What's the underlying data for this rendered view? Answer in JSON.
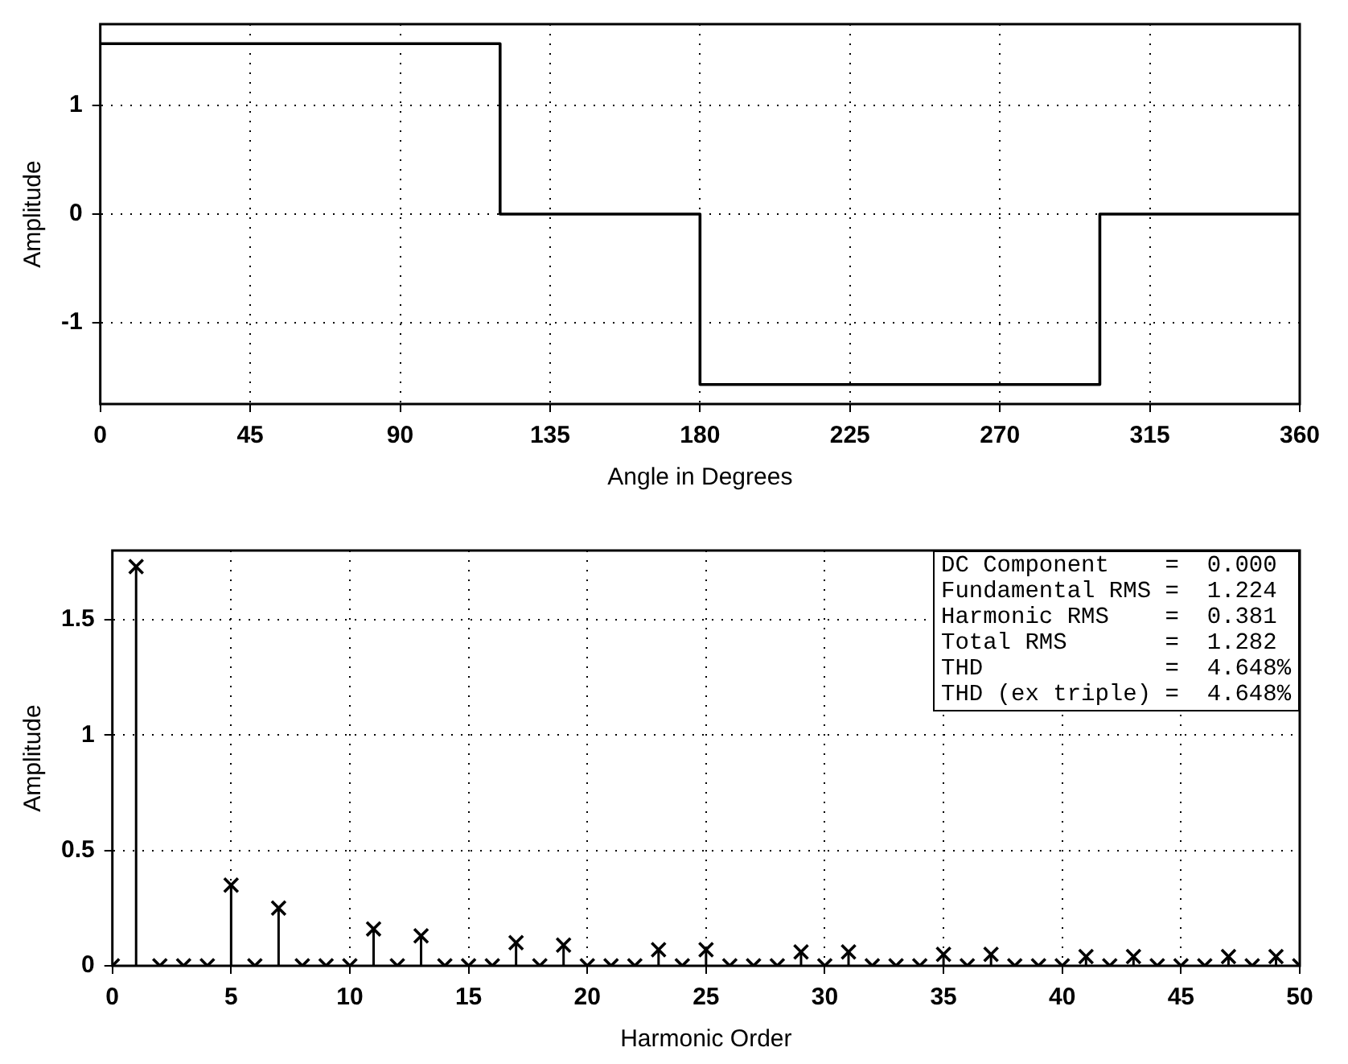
{
  "chart_data": [
    {
      "type": "step",
      "xlabel": "Angle in Degrees",
      "ylabel": "Amplitude",
      "x": [
        0,
        120,
        180,
        300,
        360
      ],
      "series": [
        {
          "color": "#000000",
          "values": [
            1.57,
            0,
            -1.57,
            0,
            0
          ]
        }
      ],
      "xlim": [
        0,
        360
      ],
      "xticks": [
        0,
        45,
        90,
        135,
        180,
        225,
        270,
        315,
        360
      ],
      "ylim": [
        -1.75,
        1.75
      ],
      "yticks": [
        -1,
        0,
        1
      ],
      "grid": true,
      "legend": false
    },
    {
      "type": "lollipop",
      "xlabel": "Harmonic Order",
      "ylabel": "Amplitude",
      "marker": "cross",
      "x": [
        0,
        1,
        2,
        3,
        4,
        5,
        6,
        7,
        8,
        9,
        10,
        11,
        12,
        13,
        14,
        15,
        16,
        17,
        18,
        19,
        20,
        21,
        22,
        23,
        24,
        25,
        26,
        27,
        28,
        29,
        30,
        31,
        32,
        33,
        34,
        35,
        36,
        37,
        38,
        39,
        40,
        41,
        42,
        43,
        44,
        45,
        46,
        47,
        48,
        49,
        50
      ],
      "series": [
        {
          "color": "#000000",
          "values": [
            0,
            1.73,
            0,
            0,
            0,
            0.35,
            0,
            0.25,
            0,
            0,
            0,
            0.16,
            0,
            0.13,
            0,
            0,
            0,
            0.1,
            0,
            0.09,
            0,
            0,
            0,
            0.07,
            0,
            0.07,
            0,
            0,
            0,
            0.06,
            0,
            0.06,
            0,
            0,
            0,
            0.05,
            0,
            0.05,
            0,
            0,
            0,
            0.04,
            0,
            0.04,
            0,
            0,
            0,
            0.04,
            0,
            0.04,
            0
          ]
        }
      ],
      "xlim": [
        0,
        50
      ],
      "xticks": [
        0,
        5,
        10,
        15,
        20,
        25,
        30,
        35,
        40,
        45,
        50
      ],
      "ylim": [
        0,
        1.8
      ],
      "yticks": [
        0,
        0.5,
        1,
        1.5
      ],
      "grid": true,
      "legend": false,
      "annotations": [
        "DC Component    =  0.000",
        "Fundamental RMS =  1.224",
        "Harmonic RMS    =  0.381",
        "Total RMS       =  1.282",
        "THD             =  4.648%",
        "THD (ex triple) =  4.648%"
      ]
    }
  ]
}
